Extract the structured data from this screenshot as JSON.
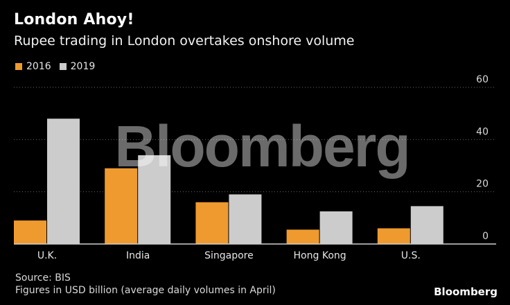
{
  "title": "London Ahoy!",
  "subtitle": "Rupee trading in London overtakes onshore volume",
  "watermark": "Bloomberg",
  "brand": "Bloomberg",
  "source": "Source: BIS",
  "note": "Figures in USD billion (average daily volumes in April)",
  "colors": {
    "s2016": "#ef9a2f",
    "s2019": "#cccccc",
    "background": "#000000",
    "grid": "#6a6a6a",
    "axis": "#d0d0d0"
  },
  "chart_data": {
    "type": "bar",
    "categories": [
      "U.K.",
      "India",
      "Singapore",
      "Hong Kong",
      "U.S."
    ],
    "series": [
      {
        "name": "2016",
        "values": [
          9,
          29,
          16,
          5.5,
          6
        ]
      },
      {
        "name": "2019",
        "values": [
          48,
          34,
          19,
          12.5,
          14.5
        ]
      }
    ],
    "ylim": [
      0,
      60
    ],
    "yticks": [
      0,
      20,
      40,
      60
    ],
    "grid": true,
    "legend": "top-left",
    "y_axis_side": "right"
  }
}
